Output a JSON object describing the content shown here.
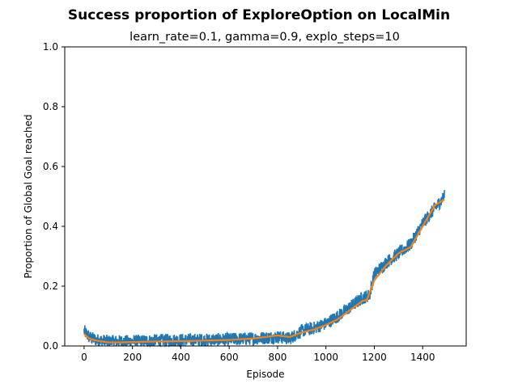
{
  "chart_data": {
    "type": "line",
    "title": "Success proportion of ExploreOption on LocalMin",
    "subtitle": "learn_rate=0.1, gamma=0.9, explo_steps=10",
    "xlabel": "Episode",
    "ylabel": "Proportion of Global Goal reached",
    "xlim": [
      -80,
      1580
    ],
    "ylim": [
      0,
      1.0
    ],
    "xticks": [
      0,
      200,
      400,
      600,
      800,
      1000,
      1200,
      1400
    ],
    "yticks": [
      0.0,
      0.2,
      0.4,
      0.6,
      0.8,
      1.0
    ],
    "ytick_labels": [
      "0.0",
      "0.2",
      "0.4",
      "0.6",
      "0.8",
      "1.0"
    ],
    "grid": false,
    "legend": "none",
    "series": [
      {
        "color": "#1f77b4",
        "noise": 0.022,
        "x": [
          0,
          20,
          50,
          100,
          150,
          200,
          300,
          400,
          500,
          600,
          700,
          800,
          850,
          900,
          950,
          1000,
          1050,
          1100,
          1150,
          1180,
          1200,
          1250,
          1300,
          1350,
          1400,
          1450,
          1490
        ],
        "y": [
          0.05,
          0.03,
          0.02,
          0.015,
          0.015,
          0.015,
          0.018,
          0.02,
          0.02,
          0.022,
          0.025,
          0.03,
          0.025,
          0.05,
          0.06,
          0.075,
          0.1,
          0.13,
          0.16,
          0.17,
          0.24,
          0.28,
          0.31,
          0.34,
          0.41,
          0.46,
          0.5
        ]
      },
      {
        "color": "#ff7f0e",
        "x": [
          0,
          20,
          50,
          100,
          150,
          200,
          300,
          400,
          500,
          600,
          700,
          750,
          800,
          850,
          900,
          950,
          1000,
          1050,
          1100,
          1150,
          1170,
          1200,
          1250,
          1300,
          1350,
          1400,
          1450,
          1490
        ],
        "y": [
          0.04,
          0.025,
          0.018,
          0.012,
          0.012,
          0.013,
          0.015,
          0.016,
          0.018,
          0.02,
          0.025,
          0.03,
          0.035,
          0.03,
          0.045,
          0.055,
          0.07,
          0.09,
          0.12,
          0.15,
          0.155,
          0.22,
          0.27,
          0.31,
          0.33,
          0.4,
          0.47,
          0.49
        ]
      }
    ]
  }
}
